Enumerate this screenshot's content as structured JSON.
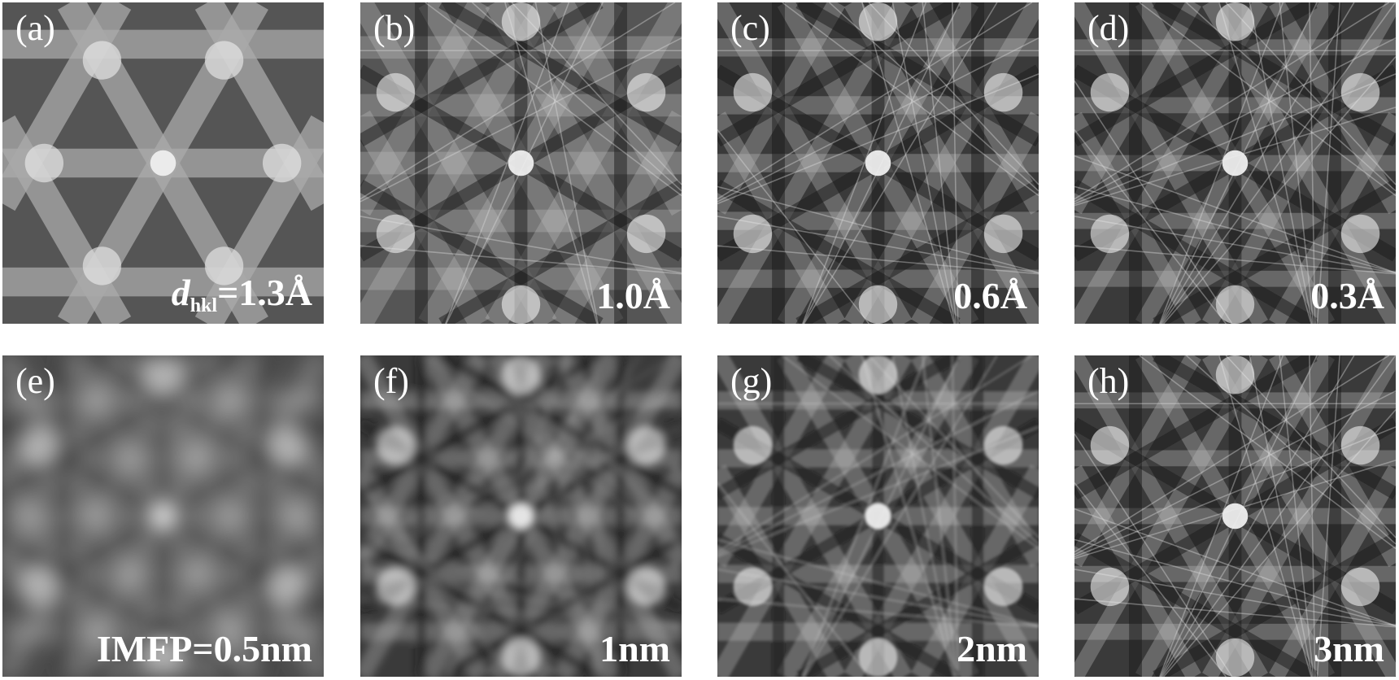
{
  "figure": {
    "panels": [
      {
        "tag": "(a)",
        "label_var": "d",
        "label_sub": "hkl",
        "label": "=1.3Å",
        "row": "dhkl",
        "blur": 0,
        "detail": 1
      },
      {
        "tag": "(b)",
        "label": "1.0Å",
        "row": "dhkl",
        "blur": 0,
        "detail": 2
      },
      {
        "tag": "(c)",
        "label": "0.6Å",
        "row": "dhkl",
        "blur": 0,
        "detail": 3
      },
      {
        "tag": "(d)",
        "label": "0.3Å",
        "row": "dhkl",
        "blur": 0,
        "detail": 4
      },
      {
        "tag": "(e)",
        "label": "IMFP=0.5nm",
        "row": "imfp",
        "blur": 3,
        "detail": 2
      },
      {
        "tag": "(f)",
        "label": "1nm",
        "row": "imfp",
        "blur": 1.2,
        "detail": 3
      },
      {
        "tag": "(g)",
        "label": "2nm",
        "row": "imfp",
        "blur": 0.4,
        "detail": 3
      },
      {
        "tag": "(h)",
        "label": "3nm",
        "row": "imfp",
        "blur": 0,
        "detail": 4
      }
    ]
  }
}
